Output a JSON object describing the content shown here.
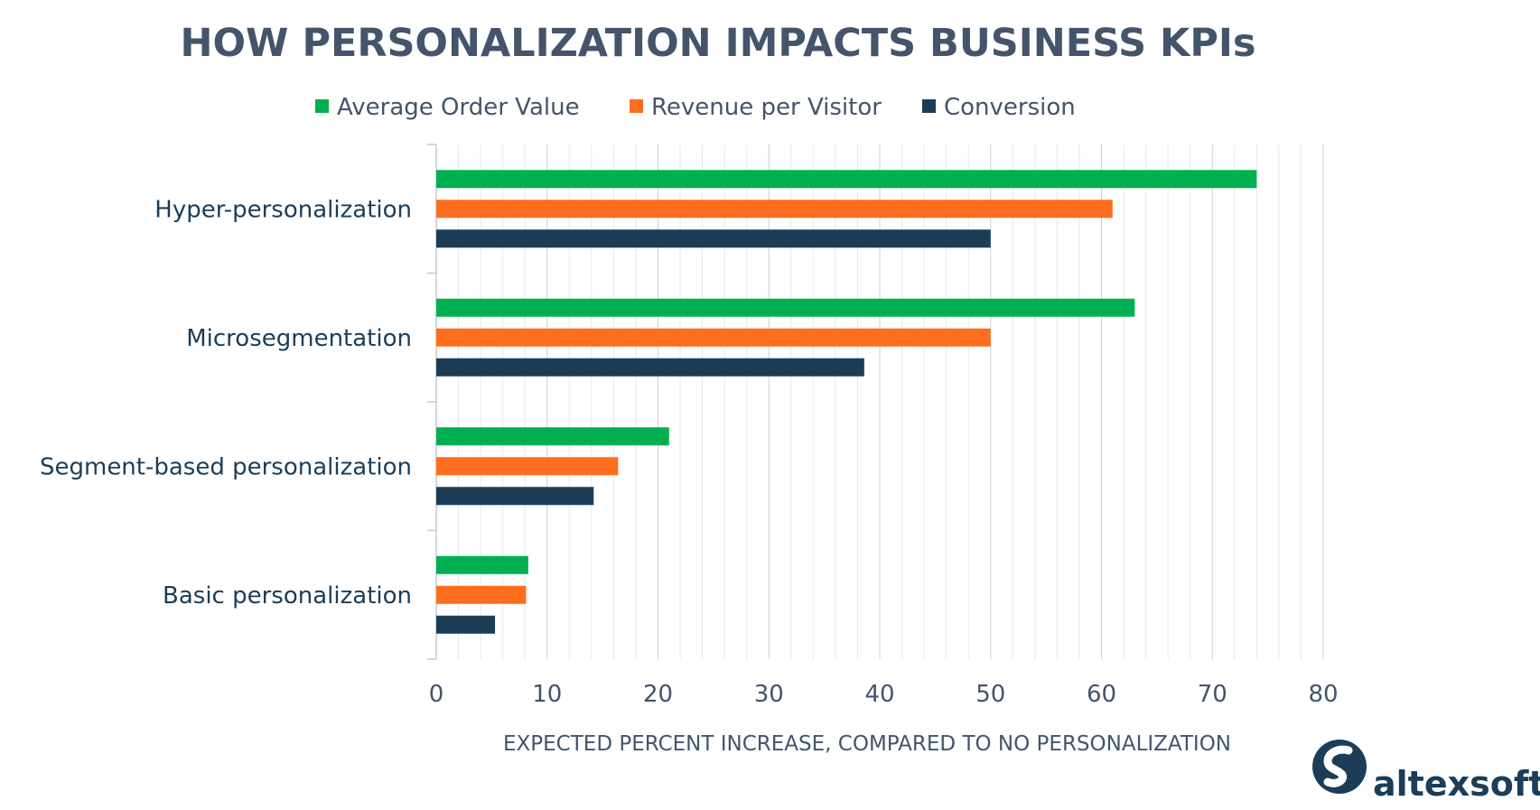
{
  "chart_data": {
    "type": "bar",
    "orientation": "horizontal",
    "title": "HOW PERSONALIZATION IMPACTS BUSINESS KPIs",
    "xlabel": "EXPECTED PERCENT INCREASE, COMPARED TO NO PERSONALIZATION",
    "ylabel": "",
    "categories": [
      "Hyper-personalization",
      "Microsegmentation",
      "Segment-based personalization",
      "Basic personalization"
    ],
    "series": [
      {
        "name": "Average Order Value",
        "color": "#00b050",
        "values": [
          74,
          63,
          21,
          8.3
        ]
      },
      {
        "name": "Revenue per Visitor",
        "color": "#ff6d1f",
        "values": [
          61,
          50,
          16.4,
          8.1
        ]
      },
      {
        "name": "Conversion",
        "color": "#1b3d58",
        "values": [
          50,
          38.6,
          14.2,
          5.3
        ]
      }
    ],
    "xlim": [
      0,
      80
    ],
    "xticks": [
      0,
      10,
      20,
      30,
      40,
      50,
      60,
      70,
      80
    ],
    "grid": true,
    "legend_position": "top"
  },
  "brand": {
    "name": "altexsoft",
    "logo_icon": "altexsoft-logo-icon",
    "color": "#1b3d58"
  },
  "colors": {
    "title": "#44546a",
    "text": "#1b3d58",
    "grid": "#d9d9d9"
  }
}
